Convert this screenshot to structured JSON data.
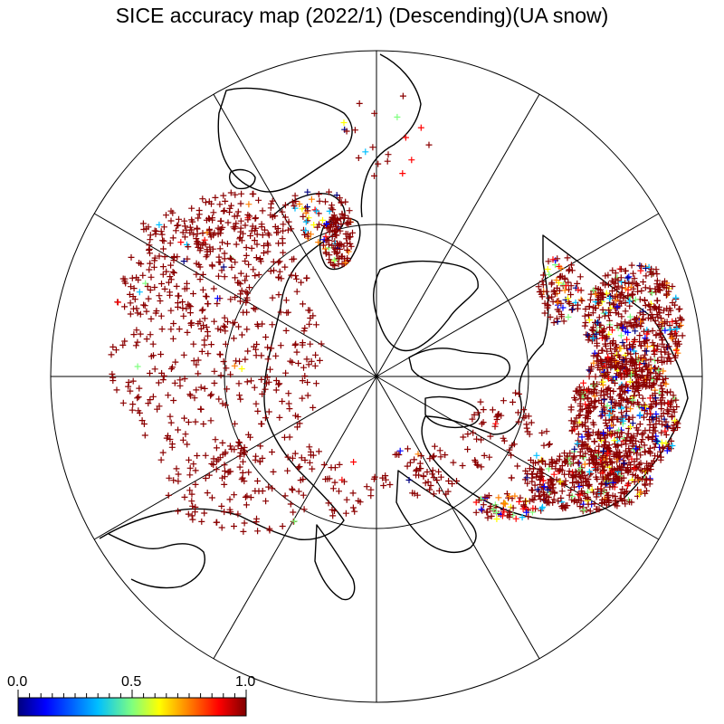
{
  "title": "SICE accuracy map (2022/1) (Descending)(UA snow)",
  "colorbar": {
    "labels": [
      "0.0",
      "0.5",
      "1.0"
    ],
    "range": [
      0.0,
      1.0
    ],
    "colors": [
      "#00007f",
      "#0000ff",
      "#00bfff",
      "#7fff7f",
      "#ffff00",
      "#ff7f00",
      "#ff0000",
      "#7f0000"
    ]
  },
  "map": {
    "projection": "north polar stereographic",
    "meridian_spokes": 12,
    "inner_latitude_circle": true,
    "marker_symbol": "+",
    "dominant_marker_color": "#8b0000"
  }
}
